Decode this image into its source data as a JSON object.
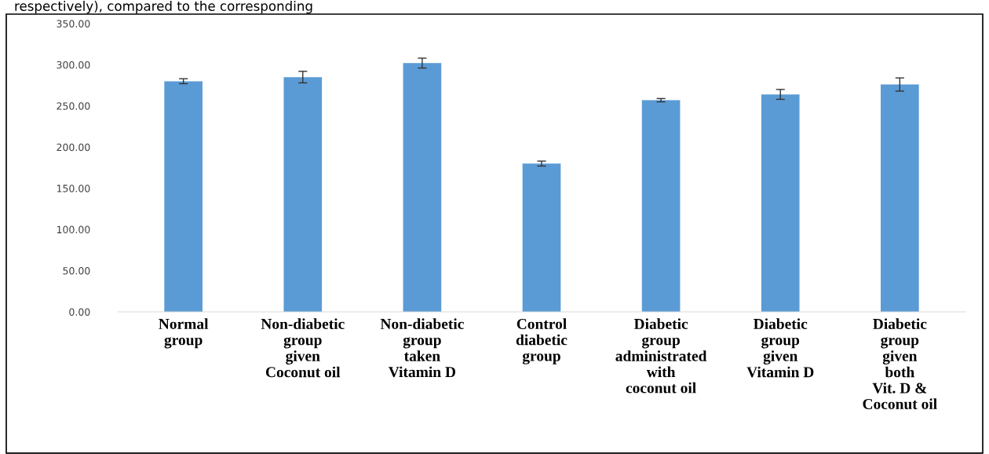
{
  "chart_data": {
    "type": "bar",
    "categories": [
      "Normal\ngroup",
      "Non-diabetic\ngroup\ngiven\nCoconut oil",
      "Non-diabetic\ngroup\ntaken\nVitamin D",
      "Control\ndiabetic\ngroup",
      "Diabetic\ngroup\nadministrated\nwith\ncoconut oil",
      "Diabetic\ngroup\ngiven\nVitamin D",
      "Diabetic\ngroup\ngiven\nboth\nVit. D &\nCoconut oil"
    ],
    "values": [
      280,
      285,
      302,
      180,
      257,
      264,
      276
    ],
    "errors": [
      3,
      7,
      6,
      3,
      2,
      6,
      8
    ],
    "color": "#5b9bd5",
    "ylim": [
      0,
      350
    ],
    "yticks": [
      {
        "value": 0,
        "label": "0.00"
      },
      {
        "value": 50,
        "label": "50.00"
      },
      {
        "value": 100,
        "label": "100.00"
      },
      {
        "value": 150,
        "label": "150.00"
      },
      {
        "value": 200,
        "label": "200.00"
      },
      {
        "value": 250,
        "label": "250.00"
      },
      {
        "value": 300,
        "label": "300.00"
      },
      {
        "value": 350,
        "label": "350.00"
      }
    ],
    "grid": false,
    "annotations": [
      "respectively), compared to the corresponding"
    ]
  }
}
